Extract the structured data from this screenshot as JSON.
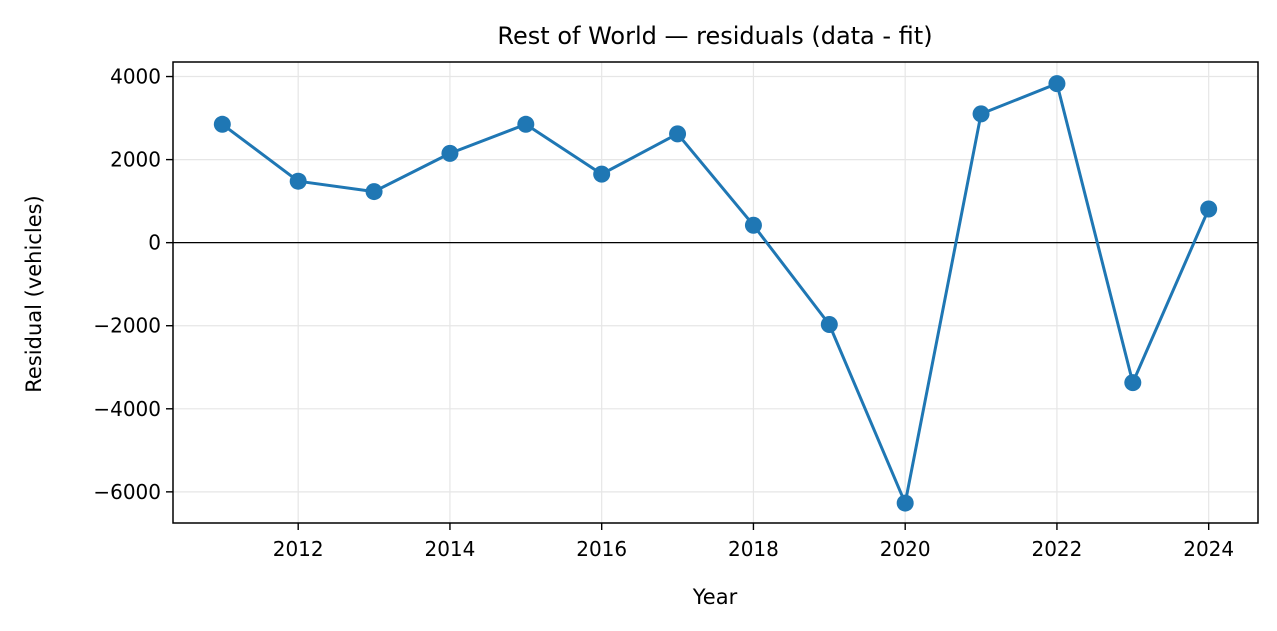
{
  "chart_data": {
    "type": "line",
    "title": "Rest of World — residuals (data - fit)",
    "xlabel": "Year",
    "ylabel": "Residual (vehicles)",
    "x": [
      2011,
      2012,
      2013,
      2014,
      2015,
      2016,
      2017,
      2018,
      2019,
      2020,
      2021,
      2022,
      2023,
      2024
    ],
    "y": [
      2850,
      1480,
      1230,
      2150,
      2850,
      1650,
      2620,
      420,
      -1970,
      -6270,
      3100,
      3830,
      -3370,
      810
    ],
    "xlim": [
      2010.35,
      2024.65
    ],
    "ylim": [
      -6750,
      4350
    ],
    "xticks": [
      2012,
      2014,
      2016,
      2018,
      2020,
      2022,
      2024
    ],
    "xtick_labels": [
      "2012",
      "2014",
      "2016",
      "2018",
      "2020",
      "2022",
      "2024"
    ],
    "yticks": [
      4000,
      2000,
      0,
      -2000,
      -4000,
      -6000
    ],
    "ytick_labels": [
      "4000",
      "2000",
      "0",
      "−2000",
      "−4000",
      "−6000"
    ],
    "zero_line": true,
    "grid": true,
    "line_color": "#1f77b4",
    "marker": "circle"
  }
}
